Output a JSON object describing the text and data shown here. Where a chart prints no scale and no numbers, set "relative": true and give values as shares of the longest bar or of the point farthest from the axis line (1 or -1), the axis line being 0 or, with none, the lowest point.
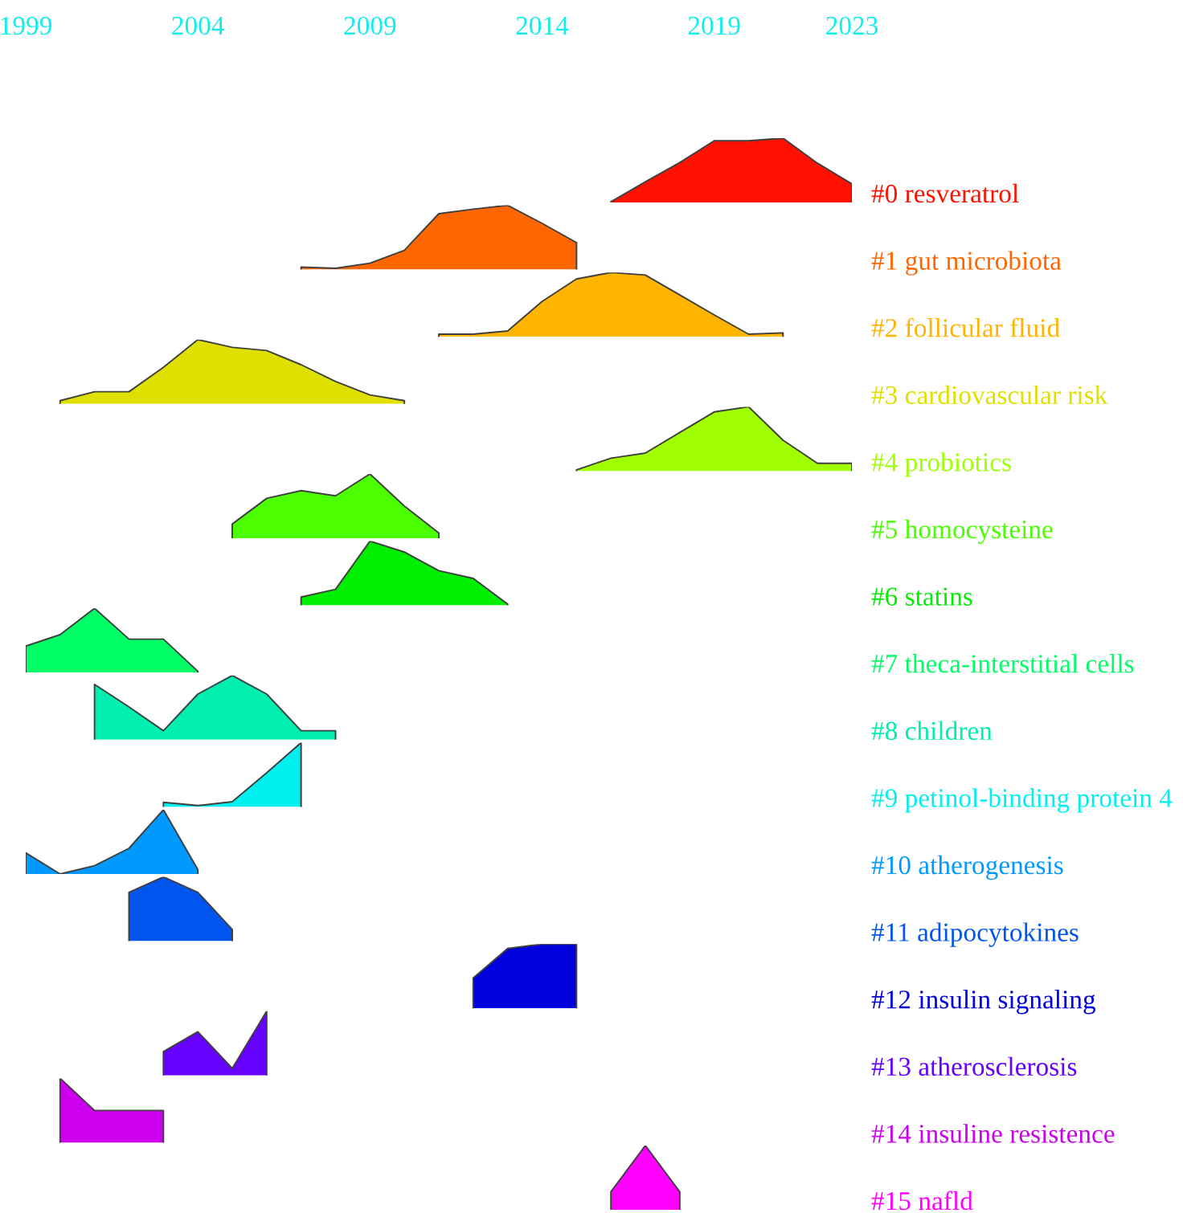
{
  "chart_data": [
    {
      "type": "area",
      "x": [
        2016,
        2017,
        2018,
        2019,
        2020,
        2021,
        2022,
        2023
      ],
      "series": [
        {
          "name": "#0 resveratrol",
          "color": "#ff1000",
          "values": [
            0.01,
            0.32,
            0.62,
            0.96,
            0.96,
            1.0,
            0.61,
            0.29
          ]
        }
      ],
      "relative": true,
      "xlim": [
        1999,
        2023
      ],
      "xticks": [
        1999,
        2004,
        2009,
        2014,
        2019,
        2023
      ],
      "tick_labels": "x"
    },
    {
      "type": "area",
      "x": [
        2007,
        2008,
        2009,
        2010,
        2011,
        2012,
        2013,
        2014,
        2015
      ],
      "series": [
        {
          "name": "#1 gut microbiota",
          "color": "#ff6600",
          "values": [
            0.04,
            0.02,
            0.1,
            0.3,
            0.87,
            0.94,
            1.0,
            0.72,
            0.42
          ]
        }
      ],
      "relative": true,
      "xlim": [
        1999,
        2023
      ],
      "tick_labels": false
    },
    {
      "type": "area",
      "x": [
        2011,
        2012,
        2013,
        2014,
        2015,
        2016,
        2017,
        2018,
        2019,
        2020,
        2021
      ],
      "series": [
        {
          "name": "#2 follicular fluid",
          "color": "#ffb400",
          "values": [
            0.04,
            0.04,
            0.09,
            0.55,
            0.9,
            1.0,
            0.96,
            0.65,
            0.34,
            0.04,
            0.06
          ]
        }
      ],
      "relative": true,
      "xlim": [
        1999,
        2023
      ],
      "tick_labels": false
    },
    {
      "type": "area",
      "x": [
        2000,
        2001,
        2002,
        2003,
        2004,
        2005,
        2006,
        2007,
        2008,
        2009,
        2010
      ],
      "series": [
        {
          "name": "#3 cardiovascular risk",
          "color": "#e0e000",
          "values": [
            0.05,
            0.19,
            0.19,
            0.57,
            1.0,
            0.88,
            0.83,
            0.61,
            0.35,
            0.14,
            0.05
          ]
        }
      ],
      "relative": true,
      "xlim": [
        1999,
        2023
      ],
      "tick_labels": false
    },
    {
      "type": "area",
      "x": [
        2015,
        2016,
        2017,
        2018,
        2019,
        2020,
        2021,
        2022,
        2023
      ],
      "series": [
        {
          "name": "#4 probiotics",
          "color": "#a0ff00",
          "values": [
            0.02,
            0.2,
            0.28,
            0.6,
            0.92,
            1.0,
            0.48,
            0.12,
            0.12
          ]
        }
      ],
      "relative": true,
      "xlim": [
        1999,
        2023
      ],
      "tick_labels": false
    },
    {
      "type": "area",
      "x": [
        2005,
        2006,
        2007,
        2008,
        2009,
        2010,
        2011
      ],
      "series": [
        {
          "name": "#5 homocysteine",
          "color": "#4cff00",
          "values": [
            0.22,
            0.62,
            0.74,
            0.66,
            1.0,
            0.5,
            0.08
          ]
        }
      ],
      "relative": true,
      "xlim": [
        1999,
        2023
      ],
      "tick_labels": false
    },
    {
      "type": "area",
      "x": [
        2007,
        2008,
        2009,
        2010,
        2011,
        2012,
        2013
      ],
      "series": [
        {
          "name": "#6 statins",
          "color": "#00ee00",
          "values": [
            0.13,
            0.25,
            1.0,
            0.83,
            0.54,
            0.42,
            0.02
          ]
        }
      ],
      "relative": true,
      "xlim": [
        1999,
        2023
      ],
      "tick_labels": false
    },
    {
      "type": "area",
      "x": [
        1999,
        2000,
        2001,
        2002,
        2003,
        2004
      ],
      "series": [
        {
          "name": "#7 theca-interstitial cells",
          "color": "#00ff66",
          "values": [
            0.41,
            0.59,
            1.0,
            0.52,
            0.52,
            0.02
          ]
        }
      ],
      "relative": true,
      "xlim": [
        1999,
        2023
      ],
      "tick_labels": false
    },
    {
      "type": "area",
      "x": [
        2001,
        2002,
        2003,
        2004,
        2005,
        2006,
        2007,
        2008
      ],
      "series": [
        {
          "name": "#8 children",
          "color": "#00eeb0",
          "values": [
            0.86,
            0.51,
            0.14,
            0.71,
            1.0,
            0.71,
            0.14,
            0.14
          ]
        }
      ],
      "relative": true,
      "xlim": [
        1999,
        2023
      ],
      "tick_labels": false
    },
    {
      "type": "area",
      "x": [
        2003,
        2004,
        2005,
        2006,
        2007
      ],
      "series": [
        {
          "name": "#9 petinol-binding protein 4",
          "color": "#00f0f0",
          "values": [
            0.07,
            0.02,
            0.08,
            0.53,
            1.0
          ]
        }
      ],
      "relative": true,
      "xlim": [
        1999,
        2023
      ],
      "tick_labels": false
    },
    {
      "type": "area",
      "x": [
        1999,
        2000,
        2001,
        2002,
        2003,
        2004
      ],
      "series": [
        {
          "name": "#10 atherogenesis",
          "color": "#0099ff",
          "values": [
            0.33,
            0.0,
            0.13,
            0.4,
            1.0,
            0.07
          ]
        }
      ],
      "relative": true,
      "xlim": [
        1999,
        2023
      ],
      "tick_labels": false
    },
    {
      "type": "area",
      "x": [
        2002,
        2003,
        2004,
        2005
      ],
      "series": [
        {
          "name": "#11 adipocytokines",
          "color": "#0055ee",
          "values": [
            0.76,
            1.0,
            0.76,
            0.18
          ]
        }
      ],
      "relative": true,
      "xlim": [
        1999,
        2023
      ],
      "tick_labels": false
    },
    {
      "type": "area",
      "x": [
        2012,
        2013,
        2014,
        2015
      ],
      "series": [
        {
          "name": "#12 insulin signaling",
          "color": "#0000dd",
          "values": [
            0.47,
            0.93,
            1.0,
            1.0
          ]
        }
      ],
      "relative": true,
      "xlim": [
        1999,
        2023
      ],
      "tick_labels": false
    },
    {
      "type": "area",
      "x": [
        2003,
        2004,
        2005,
        2006
      ],
      "series": [
        {
          "name": "#13 atherosclerosis",
          "color": "#6600ff",
          "values": [
            0.37,
            0.68,
            0.11,
            1.0
          ]
        }
      ],
      "relative": true,
      "xlim": [
        1999,
        2023
      ],
      "tick_labels": false
    },
    {
      "type": "area",
      "x": [
        2000,
        2001,
        2002,
        2003
      ],
      "series": [
        {
          "name": "#14 insuline resistence",
          "color": "#cc00ee",
          "values": [
            1.0,
            0.5,
            0.5,
            0.5
          ]
        }
      ],
      "relative": true,
      "xlim": [
        1999,
        2023
      ],
      "tick_labels": false
    },
    {
      "type": "area",
      "x": [
        2016,
        2017,
        2018
      ],
      "series": [
        {
          "name": "#15 nafld",
          "color": "#ff00ff",
          "values": [
            0.28,
            1.0,
            0.28
          ]
        }
      ],
      "relative": true,
      "xlim": [
        1999,
        2023
      ],
      "tick_labels": false
    }
  ]
}
